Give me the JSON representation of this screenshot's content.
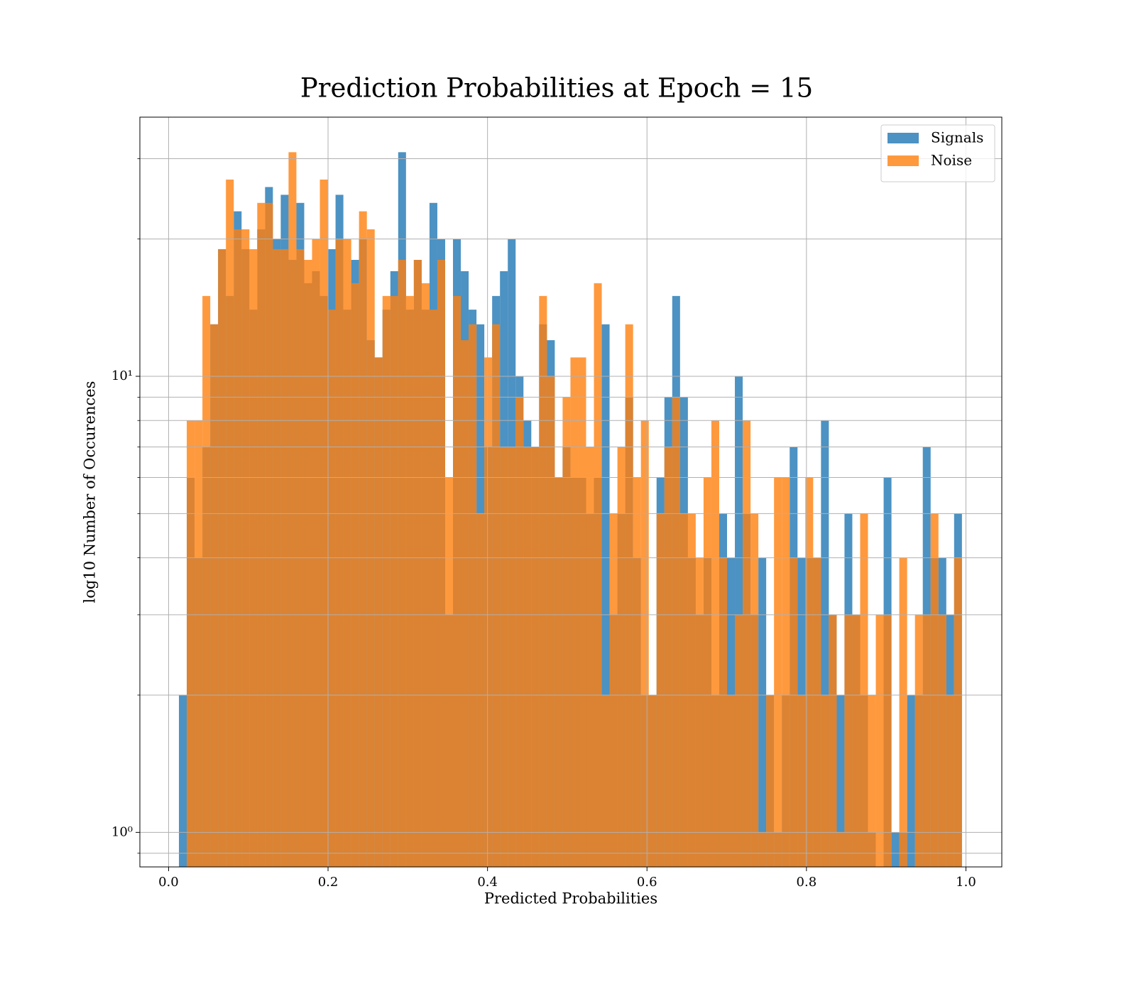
{
  "chart_data": {
    "type": "histogram",
    "title": "Prediction Probabilities at Epoch = 15",
    "xlabel": "Predicted Probabilities",
    "ylabel": "log10 Number of Occurences",
    "bins": [
      0.013,
      0.02282,
      0.03264,
      0.04246,
      0.05228,
      0.0621,
      0.07192,
      0.08174,
      0.09156,
      0.10138,
      0.1112,
      0.12102,
      0.13084,
      0.14066,
      0.15048,
      0.1603,
      0.17012,
      0.17994,
      0.18976,
      0.19958,
      0.2094,
      0.21922,
      0.22904,
      0.23886,
      0.24868,
      0.2585,
      0.26832,
      0.27814,
      0.28796,
      0.29778,
      0.3076,
      0.31742,
      0.32724,
      0.33706,
      0.34688,
      0.3567,
      0.36652,
      0.37634,
      0.38616,
      0.39598,
      0.4058,
      0.41562,
      0.42544,
      0.43526,
      0.44508,
      0.4549,
      0.46472,
      0.47454,
      0.48436,
      0.49418,
      0.504,
      0.51382,
      0.52364,
      0.53346,
      0.54328,
      0.5531,
      0.56292,
      0.57274,
      0.58256,
      0.59238,
      0.6022,
      0.61202,
      0.62184,
      0.63166,
      0.64148,
      0.6513,
      0.66112,
      0.67094,
      0.68076,
      0.69058,
      0.7004,
      0.71022,
      0.72004,
      0.72986,
      0.73968,
      0.7495,
      0.75932,
      0.76914,
      0.77896,
      0.78878,
      0.7986,
      0.80842,
      0.81824,
      0.82806,
      0.83788,
      0.8477,
      0.85752,
      0.86734,
      0.87716,
      0.88698,
      0.8968,
      0.90662,
      0.91644,
      0.92626,
      0.93608,
      0.9459,
      0.95572,
      0.96554,
      0.97536,
      0.98518,
      0.995
    ],
    "series": [
      {
        "name": "Signals",
        "color": "#1f77b4",
        "values": [
          2,
          6,
          4,
          7,
          13,
          19,
          15,
          23,
          19,
          14,
          21,
          26,
          20,
          25,
          18,
          24,
          16,
          17,
          15,
          19,
          25,
          14,
          18,
          20,
          12,
          11,
          14,
          17,
          31,
          14,
          18,
          14,
          24,
          20,
          3,
          20,
          17,
          14,
          13,
          7,
          15,
          17,
          20,
          10,
          8,
          7,
          13,
          12,
          6,
          7,
          6,
          6,
          5,
          6,
          13,
          3,
          5,
          9,
          4,
          2,
          2,
          6,
          9,
          15,
          9,
          4,
          3,
          4,
          2,
          5,
          4,
          10,
          5,
          3,
          4,
          2,
          1,
          2,
          7,
          4,
          4,
          4,
          8,
          3,
          2,
          5,
          3,
          2,
          1,
          0,
          6,
          1,
          1,
          2,
          2,
          7,
          4,
          4,
          3,
          5
        ]
      },
      {
        "name": "Noise",
        "color": "#ff7f0e",
        "values": [
          0,
          8,
          8,
          15,
          13,
          19,
          27,
          21,
          21,
          19,
          24,
          24,
          19,
          19,
          31,
          19,
          18,
          20,
          27,
          14,
          20,
          20,
          16,
          23,
          21,
          11,
          15,
          15,
          18,
          15,
          18,
          16,
          14,
          18,
          6,
          15,
          12,
          13,
          5,
          11,
          13,
          7,
          7,
          9,
          7,
          7,
          15,
          10,
          6,
          9,
          11,
          11,
          7,
          16,
          2,
          5,
          7,
          13,
          6,
          8,
          2,
          5,
          7,
          9,
          5,
          5,
          4,
          6,
          8,
          4,
          2,
          3,
          8,
          5,
          1,
          2,
          6,
          6,
          4,
          2,
          6,
          4,
          2,
          3,
          1,
          3,
          3,
          5,
          2,
          3,
          3,
          0,
          4,
          0,
          3,
          3,
          5,
          3,
          2,
          4
        ]
      }
    ],
    "opacity": 0.8,
    "xlim": [
      -0.036,
      1.045
    ],
    "xticks": [
      {
        "value": 0,
        "label": "0.0"
      },
      0.2,
      0.4,
      0.6,
      0.8,
      {
        "value": 1,
        "label": "1.0"
      }
    ],
    "ylim": [
      0.84,
      37
    ],
    "yscale": "log",
    "yticks": [
      {
        "value": 1,
        "label": "10⁰"
      },
      {
        "value": 10,
        "label": "10¹"
      }
    ],
    "yticks_minor": [
      0.9,
      2,
      3,
      4,
      5,
      6,
      7,
      8,
      9,
      20,
      30
    ],
    "grid": true,
    "legend": "upper right"
  }
}
